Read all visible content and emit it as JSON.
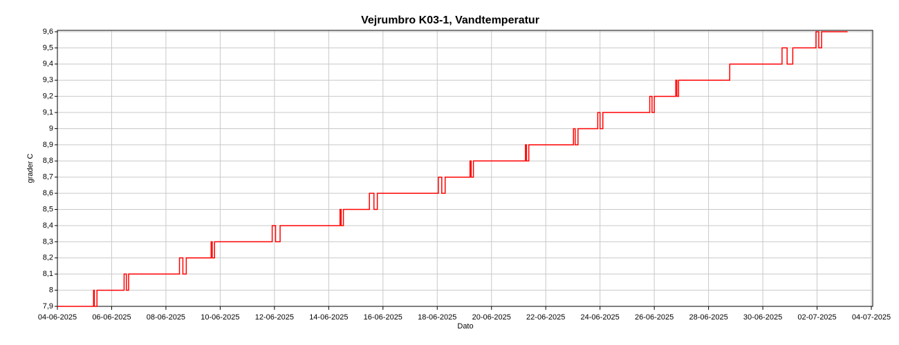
{
  "chart_data": {
    "type": "line",
    "title": "Vejrumbro K03-1, Vandtemperatur",
    "xlabel": "Dato",
    "ylabel": "grader C",
    "color": "#ff0000",
    "grid": true,
    "xlim": [
      "2025-06-04",
      "2025-07-04"
    ],
    "xticks": [
      {
        "value": "2025-06-04",
        "label": "04-06-2025"
      },
      {
        "value": "2025-06-06",
        "label": "06-06-2025"
      },
      {
        "value": "2025-06-08",
        "label": "08-06-2025"
      },
      {
        "value": "2025-06-10",
        "label": "10-06-2025"
      },
      {
        "value": "2025-06-12",
        "label": "12-06-2025"
      },
      {
        "value": "2025-06-14",
        "label": "14-06-2025"
      },
      {
        "value": "2025-06-16",
        "label": "16-06-2025"
      },
      {
        "value": "2025-06-18",
        "label": "18-06-2025"
      },
      {
        "value": "2025-06-20",
        "label": "20-06-2025"
      },
      {
        "value": "2025-06-22",
        "label": "22-06-2025"
      },
      {
        "value": "2025-06-24",
        "label": "24-06-2025"
      },
      {
        "value": "2025-06-26",
        "label": "26-06-2025"
      },
      {
        "value": "2025-06-28",
        "label": "28-06-2025"
      },
      {
        "value": "2025-06-30",
        "label": "30-06-2025"
      },
      {
        "value": "2025-07-02",
        "label": "02-07-2025"
      },
      {
        "value": "2025-07-04",
        "label": "04-07-2025"
      }
    ],
    "ylim": [
      7.9,
      9.6
    ],
    "yticks": [
      {
        "value": 7.9,
        "label": "7,9"
      },
      8,
      {
        "value": 8.1,
        "label": "8,1"
      },
      {
        "value": 8.2,
        "label": "8,2"
      },
      {
        "value": 8.3,
        "label": "8,3"
      },
      {
        "value": 8.4,
        "label": "8,4"
      },
      {
        "value": 8.5,
        "label": "8,5"
      },
      {
        "value": 8.6,
        "label": "8,6"
      },
      {
        "value": 8.7,
        "label": "8,7"
      },
      {
        "value": 8.8,
        "label": "8,8"
      },
      {
        "value": 8.9,
        "label": "8,9"
      },
      9,
      {
        "value": 9.1,
        "label": "9,1"
      },
      {
        "value": 9.2,
        "label": "9,2"
      },
      {
        "value": 9.3,
        "label": "9,3"
      },
      {
        "value": 9.4,
        "label": "9,4"
      },
      {
        "value": 9.5,
        "label": "9,5"
      },
      {
        "value": 9.6,
        "label": "9,6"
      }
    ],
    "x": [
      "2025-06-04T00:00",
      "2025-06-05T08:00",
      "2025-06-05T08:00",
      "2025-06-05T08:40",
      "2025-06-05T08:40",
      "2025-06-05T11:00",
      "2025-06-05T11:00",
      "2025-06-06T11:00",
      "2025-06-06T11:00",
      "2025-06-06T13:00",
      "2025-06-06T13:00",
      "2025-06-06T15:00",
      "2025-06-06T15:00",
      "2025-06-08T12:00",
      "2025-06-08T12:00",
      "2025-06-08T15:00",
      "2025-06-08T15:00",
      "2025-06-08T18:00",
      "2025-06-08T18:00",
      "2025-06-09T16:00",
      "2025-06-09T16:00",
      "2025-06-09T17:00",
      "2025-06-09T17:00",
      "2025-06-09T19:00",
      "2025-06-09T19:00",
      "2025-06-11T22:00",
      "2025-06-11T22:00",
      "2025-06-12T01:00",
      "2025-06-12T01:00",
      "2025-06-12T05:00",
      "2025-06-12T05:00",
      "2025-06-14T10:00",
      "2025-06-14T10:00",
      "2025-06-14T11:00",
      "2025-06-14T11:00",
      "2025-06-14T13:00",
      "2025-06-14T13:00",
      "2025-06-15T12:00",
      "2025-06-15T12:00",
      "2025-06-15T16:00",
      "2025-06-15T16:00",
      "2025-06-15T19:00",
      "2025-06-15T19:00",
      "2025-06-18T01:00",
      "2025-06-18T01:00",
      "2025-06-18T04:00",
      "2025-06-18T04:00",
      "2025-06-18T07:00",
      "2025-06-18T07:00",
      "2025-06-19T05:00",
      "2025-06-19T05:00",
      "2025-06-19T06:00",
      "2025-06-19T06:00",
      "2025-06-19T08:00",
      "2025-06-19T08:00",
      "2025-06-21T06:00",
      "2025-06-21T06:00",
      "2025-06-21T07:00",
      "2025-06-21T07:00",
      "2025-06-21T09:00",
      "2025-06-21T09:00",
      "2025-06-23T00:30",
      "2025-06-23T00:30",
      "2025-06-23T02:00",
      "2025-06-23T02:00",
      "2025-06-23T04:30",
      "2025-06-23T04:30",
      "2025-06-23T22:00",
      "2025-06-23T22:00",
      "2025-06-24T00:00",
      "2025-06-24T00:00",
      "2025-06-24T02:30",
      "2025-06-24T02:30",
      "2025-06-25T20:00",
      "2025-06-25T20:00",
      "2025-06-25T22:00",
      "2025-06-25T22:00",
      "2025-06-26T00:00",
      "2025-06-26T00:00",
      "2025-06-26T19:00",
      "2025-06-26T19:00",
      "2025-06-26T20:00",
      "2025-06-26T20:00",
      "2025-06-26T21:30",
      "2025-06-26T21:30",
      "2025-06-28T18:45",
      "2025-06-28T18:45",
      "2025-06-30T17:00",
      "2025-06-30T17:00",
      "2025-06-30T21:30",
      "2025-06-30T21:30",
      "2025-07-01T02:30",
      "2025-07-01T02:30",
      "2025-07-01T23:00",
      "2025-07-01T23:00",
      "2025-07-02T01:30",
      "2025-07-02T01:30",
      "2025-07-02T04:00",
      "2025-07-02T04:00",
      "2025-07-03T03:00"
    ],
    "values": [
      7.9,
      7.9,
      8.0,
      8.0,
      7.9,
      7.9,
      8.0,
      8.0,
      8.1,
      8.1,
      8.0,
      8.0,
      8.1,
      8.1,
      8.2,
      8.2,
      8.1,
      8.1,
      8.2,
      8.2,
      8.3,
      8.3,
      8.2,
      8.2,
      8.3,
      8.3,
      8.4,
      8.4,
      8.3,
      8.3,
      8.4,
      8.4,
      8.5,
      8.5,
      8.4,
      8.4,
      8.5,
      8.5,
      8.6,
      8.6,
      8.5,
      8.5,
      8.6,
      8.6,
      8.7,
      8.7,
      8.6,
      8.6,
      8.7,
      8.7,
      8.8,
      8.8,
      8.7,
      8.7,
      8.8,
      8.8,
      8.9,
      8.9,
      8.8,
      8.8,
      8.9,
      8.9,
      9.0,
      9.0,
      8.9,
      8.9,
      9.0,
      9.0,
      9.1,
      9.1,
      9.0,
      9.0,
      9.1,
      9.1,
      9.2,
      9.2,
      9.1,
      9.1,
      9.2,
      9.2,
      9.3,
      9.3,
      9.2,
      9.2,
      9.3,
      9.3,
      9.4,
      9.4,
      9.5,
      9.5,
      9.4,
      9.4,
      9.5,
      9.5,
      9.6,
      9.6,
      9.5,
      9.5,
      9.6,
      9.6
    ]
  }
}
